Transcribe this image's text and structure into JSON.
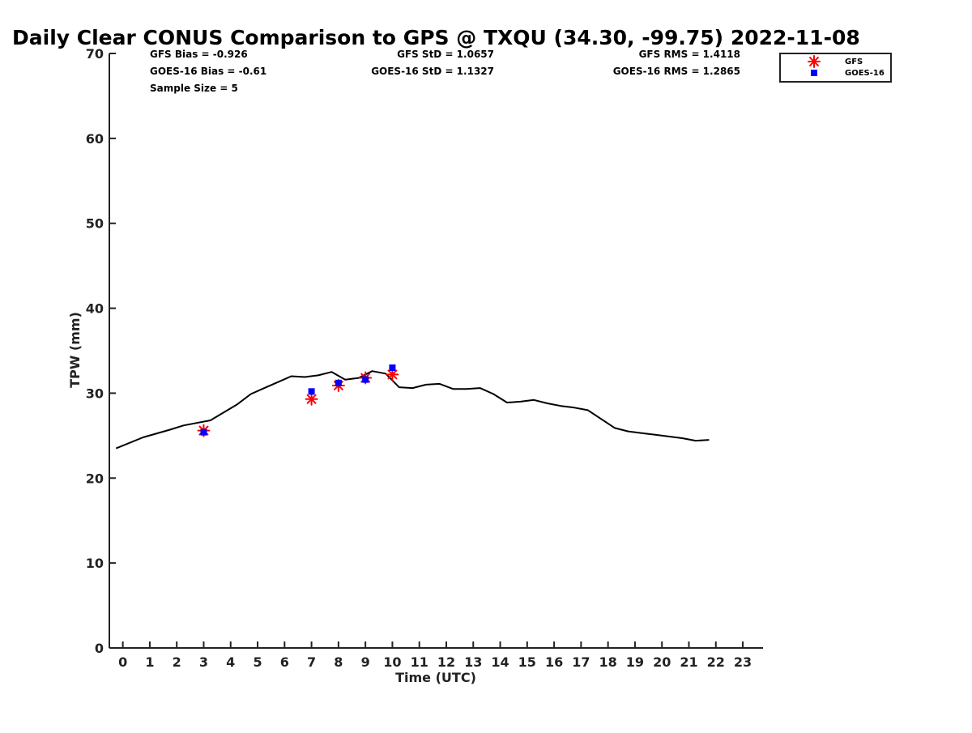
{
  "chart_data": {
    "type": "scatter",
    "title": "Daily Clear CONUS Comparison to GPS @ TXQU (34.30, -99.75) 2022-11-08",
    "xlabel": "Time (UTC)",
    "ylabel": "TPW (mm)",
    "xlim": [
      -0.5,
      23.75
    ],
    "ylim": [
      0,
      70
    ],
    "x_ticks": [
      "0",
      "1",
      "2",
      "3",
      "4",
      "5",
      "6",
      "7",
      "8",
      "9",
      "10",
      "11",
      "12",
      "13",
      "14",
      "15",
      "16",
      "17",
      "18",
      "19",
      "20",
      "21",
      "22",
      "23"
    ],
    "y_ticks": [
      "0",
      "10",
      "20",
      "30",
      "40",
      "50",
      "60",
      "70"
    ],
    "grid": false,
    "legend_position": "top-right, outside plot",
    "stats": {
      "gfs_bias": "GFS Bias = -0.926",
      "goes_bias": "GOES-16 Bias = -0.61",
      "sample_size": "Sample Size = 5",
      "gfs_std": "GFS StD = 1.0657",
      "goes_std": "GOES-16 StD = 1.1327",
      "gfs_rms": "GFS RMS = 1.4118",
      "goes_rms": "GOES-16 RMS = 1.2865"
    },
    "series": [
      {
        "type": "line",
        "color": "#000000",
        "x": [
          -0.25,
          0.75,
          1.75,
          2.25,
          3.25,
          4.25,
          4.75,
          5.25,
          5.75,
          6.25,
          6.75,
          7.25,
          7.75,
          8.25,
          8.75,
          9.25,
          9.75,
          10.25,
          10.75,
          11.25,
          11.75,
          12.25,
          12.75,
          13.25,
          13.75,
          14.25,
          14.75,
          15.25,
          15.75,
          16.25,
          16.75,
          17.25,
          18.25,
          18.75,
          19.25,
          19.75,
          20.25,
          20.75,
          21.25,
          21.75
        ],
        "y": [
          23.5,
          24.8,
          25.7,
          26.2,
          26.8,
          28.7,
          29.9,
          30.6,
          31.3,
          32.0,
          31.9,
          32.1,
          32.5,
          31.6,
          31.8,
          32.6,
          32.3,
          30.7,
          30.6,
          31.0,
          31.1,
          30.5,
          30.5,
          30.6,
          29.9,
          28.9,
          29.0,
          29.2,
          28.8,
          28.5,
          28.3,
          28.0,
          25.9,
          25.5,
          25.3,
          25.1,
          24.9,
          24.7,
          24.4,
          24.5
        ]
      },
      {
        "name": "GFS",
        "type": "scatter",
        "marker": "asterisk",
        "color": "#ff0000",
        "x": [
          3,
          7,
          8,
          9,
          10
        ],
        "y": [
          25.6,
          29.3,
          30.9,
          31.8,
          32.2
        ]
      },
      {
        "name": "GOES-16",
        "type": "scatter",
        "marker": "square",
        "color": "#0000ff",
        "x": [
          3,
          7,
          8,
          9,
          10
        ],
        "y": [
          25.4,
          30.2,
          31.2,
          31.6,
          33.0
        ]
      }
    ]
  }
}
